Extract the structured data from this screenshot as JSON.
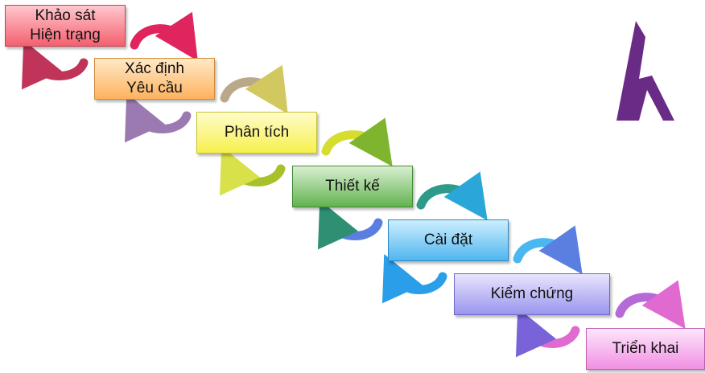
{
  "steps": [
    {
      "label": "Khảo sát\nHiện trạng"
    },
    {
      "label": "Xác định\nYêu cầu"
    },
    {
      "label": "Phân tích"
    },
    {
      "label": "Thiết kế"
    },
    {
      "label": "Cài đặt"
    },
    {
      "label": "Kiểm chứng"
    },
    {
      "label": "Triển khai"
    }
  ],
  "colors": {
    "arrow_1": "#e0245e",
    "arrow_2": "#a8798e",
    "arrow_3": "#bcbf2a",
    "arrow_4": "#2e9a8a",
    "arrow_5": "#3aa0e8",
    "arrow_6": "#b56ad8",
    "logo": "#6a2b86"
  },
  "logo": {
    "icon": "h-letter-logo-icon"
  }
}
